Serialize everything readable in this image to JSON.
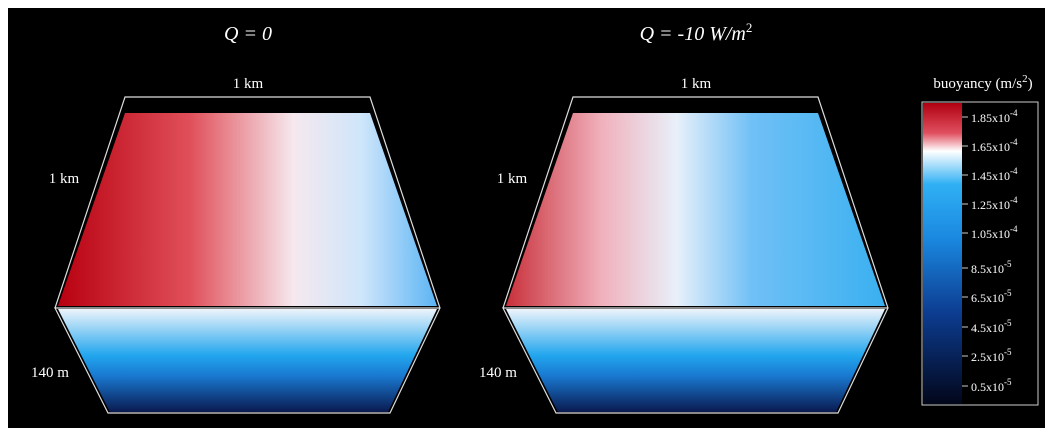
{
  "panels": [
    {
      "title": {
        "text": "Q = 0",
        "sup": ""
      },
      "top_edge": "1 km",
      "side_edge": "1 km",
      "depth_edge": "140 m"
    },
    {
      "title": {
        "text": "Q = -10 W/m",
        "sup": "2"
      },
      "top_edge": "1 km",
      "side_edge": "1 km",
      "depth_edge": "140 m"
    }
  ],
  "colorbar": {
    "title": "buoyancy (m/s",
    "title_sup": "2",
    "title_end": ")",
    "ticks": [
      {
        "base": "1.85x10",
        "exp": "-4"
      },
      {
        "base": "1.65x10",
        "exp": "-4"
      },
      {
        "base": "1.45x10",
        "exp": "-4"
      },
      {
        "base": "1.25x10",
        "exp": "-4"
      },
      {
        "base": "1.05x10",
        "exp": "-4"
      },
      {
        "base": "8.5x10",
        "exp": "-5"
      },
      {
        "base": "6.5x10",
        "exp": "-5"
      },
      {
        "base": "4.5x10",
        "exp": "-5"
      },
      {
        "base": "2.5x10",
        "exp": "-5"
      },
      {
        "base": "0.5x10",
        "exp": "-5"
      }
    ]
  }
}
